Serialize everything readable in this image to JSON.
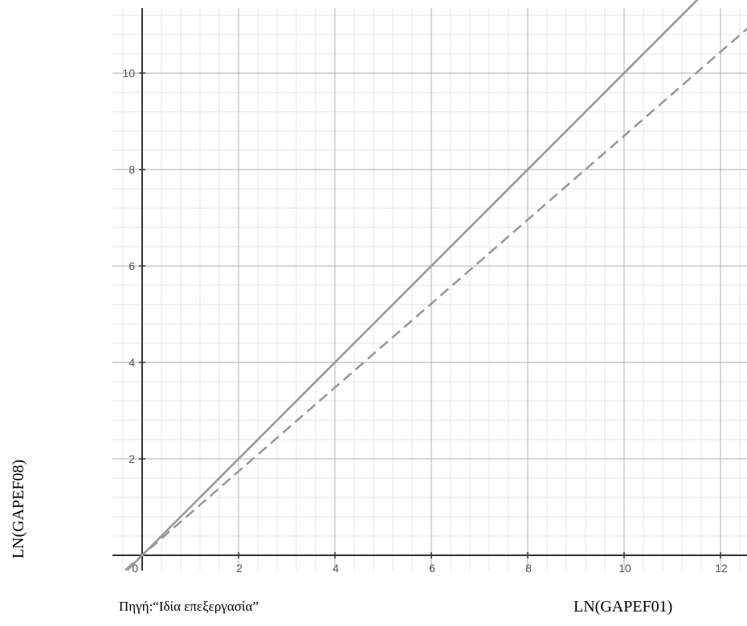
{
  "chart_data": {
    "type": "line",
    "xlabel": "LN(GAPEF01)",
    "ylabel": "LN(GAPEF08)",
    "source_note": "Πηγή:“Ιδία επεξεργασία”",
    "origin_label": "0",
    "xlim": [
      -0.6,
      12.6
    ],
    "ylim": [
      -0.6,
      11.35
    ],
    "x_ticks": [
      2,
      4,
      6,
      8,
      10,
      12
    ],
    "y_ticks": [
      2,
      4,
      6,
      8,
      10
    ],
    "grid": true,
    "minor_grid_step": 0.4,
    "series": [
      {
        "style": "solid",
        "slope": 1.0,
        "intercept": 0,
        "x": [
          -0.6,
          12.6
        ],
        "y": [
          -0.6,
          12.6
        ]
      },
      {
        "style": "dashed",
        "slope": 0.87,
        "intercept": 0,
        "x": [
          -0.6,
          12.6
        ],
        "y": [
          -0.522,
          10.962
        ]
      }
    ],
    "colors": {
      "line": "#9a9a9a",
      "axis": "#333333",
      "major_grid": "#bdbdbd",
      "minor_grid": "#e6e6e6"
    }
  }
}
